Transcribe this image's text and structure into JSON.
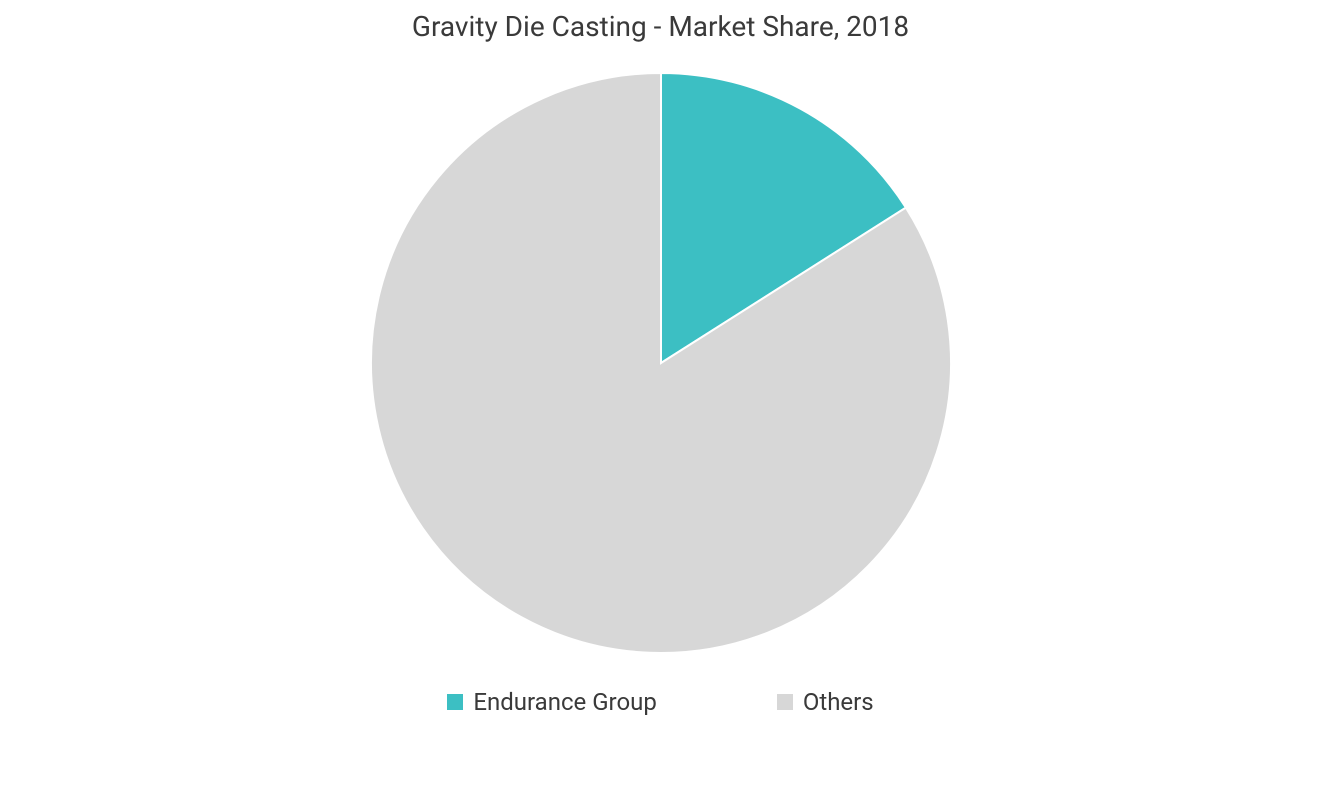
{
  "chart": {
    "type": "pie",
    "title": "Gravity Die Casting - Market Share, 2018",
    "title_fontsize": 28,
    "title_color": "#3a3a3a",
    "background_color": "#ffffff",
    "radius": 290,
    "stroke_color": "#ffffff",
    "stroke_width": 2,
    "slices": [
      {
        "label": "Endurance Group",
        "value": 16,
        "color": "#3cbfc3"
      },
      {
        "label": "Others",
        "value": 84,
        "color": "#d7d7d7"
      }
    ],
    "legend": {
      "position": "bottom",
      "swatch_size": 16,
      "fontsize": 24,
      "color": "#3a3a3a"
    }
  }
}
